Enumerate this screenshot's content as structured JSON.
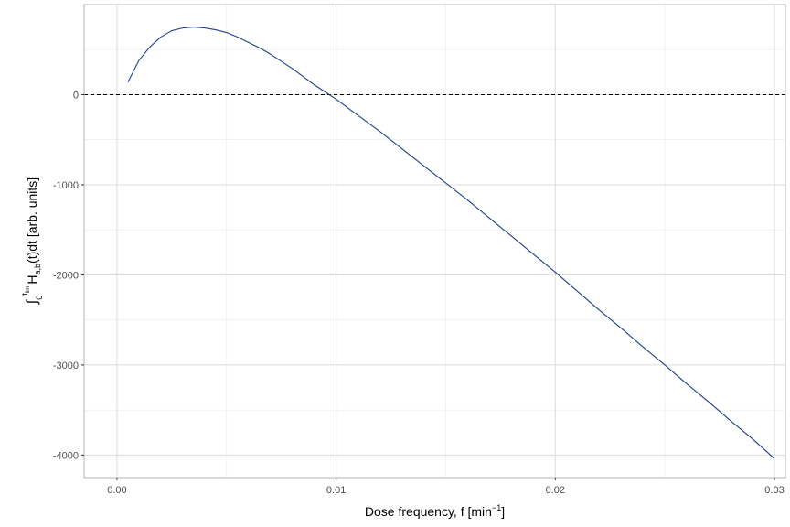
{
  "chart_data": {
    "type": "line",
    "xlabel": {
      "main": "Dose frequency, f [min",
      "sup": "−1",
      "tail": "]"
    },
    "ylabel": {
      "integral": "∫",
      "lower": "0",
      "upper": "t",
      "upper_sub": "lim",
      "main": "H",
      "main_sub": "a,b",
      "tail": "(t)dt [arb. units]"
    },
    "xlim": [
      -0.0015,
      0.0305
    ],
    "ylim": [
      -4250,
      1000
    ],
    "x_ticks": [
      0.0,
      0.01,
      0.02,
      0.03
    ],
    "x_tick_labels": [
      "0.00",
      "0.01",
      "0.02",
      "0.03"
    ],
    "y_ticks": [
      0,
      -1000,
      -2000,
      -3000,
      -4000
    ],
    "y_tick_labels": [
      "0",
      "-1000",
      "-2000",
      "-3000",
      "-4000"
    ],
    "grid": true,
    "reference_line": {
      "y": 0,
      "style": "dashed",
      "color": "#000000"
    },
    "series": [
      {
        "color": "#1f3f8f",
        "x": [
          0.0005,
          0.001,
          0.0015,
          0.002,
          0.0025,
          0.003,
          0.0035,
          0.004,
          0.0045,
          0.005,
          0.0055,
          0.006,
          0.0065,
          0.007,
          0.0075,
          0.008,
          0.0085,
          0.009,
          0.0095,
          0.01,
          0.0105,
          0.011,
          0.0115,
          0.012,
          0.013,
          0.014,
          0.015,
          0.016,
          0.017,
          0.018,
          0.019,
          0.02,
          0.021,
          0.022,
          0.023,
          0.024,
          0.025,
          0.026,
          0.027,
          0.028,
          0.029,
          0.03
        ],
        "y": [
          140,
          380,
          530,
          640,
          710,
          740,
          750,
          740,
          720,
          690,
          640,
          580,
          520,
          450,
          370,
          290,
          200,
          110,
          30,
          -50,
          -140,
          -230,
          -320,
          -410,
          -600,
          -790,
          -980,
          -1170,
          -1370,
          -1570,
          -1770,
          -1970,
          -2180,
          -2390,
          -2590,
          -2800,
          -3000,
          -3210,
          -3410,
          -3620,
          -3820,
          -4040
        ]
      }
    ]
  }
}
